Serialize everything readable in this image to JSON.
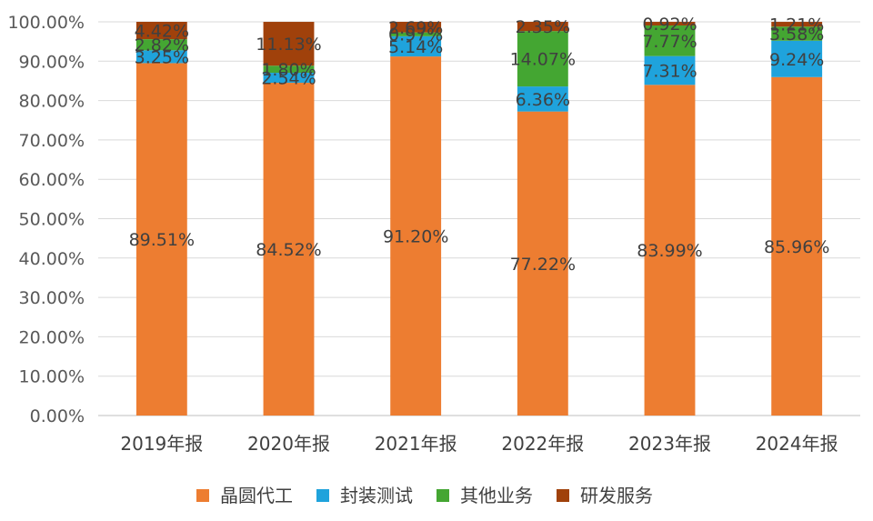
{
  "chart_data": {
    "type": "bar",
    "stacked": true,
    "percent": true,
    "categories": [
      "2019年报",
      "2020年报",
      "2021年报",
      "2022年报",
      "2023年报",
      "2024年报"
    ],
    "series": [
      {
        "name": "晶圆代工",
        "color": "#ed7d31",
        "values": [
          89.51,
          84.52,
          91.2,
          77.22,
          83.99,
          85.96
        ],
        "labels": [
          "89.51%",
          "84.52%",
          "91.20%",
          "77.22%",
          "83.99%",
          "85.96%"
        ]
      },
      {
        "name": "封装测试",
        "color": "#1fa3dc",
        "values": [
          3.25,
          2.54,
          5.14,
          6.36,
          7.31,
          9.24
        ],
        "labels": [
          "3.25%",
          "2.54%",
          "5.14%",
          "6.36%",
          "7.31%",
          "9.24%"
        ]
      },
      {
        "name": "其他业务",
        "color": "#44a632",
        "values": [
          2.82,
          1.8,
          0.97,
          14.07,
          7.77,
          3.58
        ],
        "labels": [
          "2.82%",
          "1.80%",
          "0.97%",
          "14.07%",
          "7.77%",
          "3.58%"
        ]
      },
      {
        "name": "研发服务",
        "color": "#a0410b",
        "values": [
          4.42,
          11.13,
          2.69,
          2.35,
          0.92,
          1.21
        ],
        "labels": [
          "4.42%",
          "11.13%",
          "2.69%",
          "2.35%",
          "0.92%",
          "1.21%"
        ]
      }
    ],
    "ylim": [
      0,
      100
    ],
    "yticks": [
      "0.00%",
      "10.00%",
      "20.00%",
      "30.00%",
      "40.00%",
      "50.00%",
      "60.00%",
      "70.00%",
      "80.00%",
      "90.00%",
      "100.00%"
    ],
    "grid": true,
    "legend_position": "bottom",
    "xlabel": "",
    "ylabel": "",
    "title": ""
  }
}
